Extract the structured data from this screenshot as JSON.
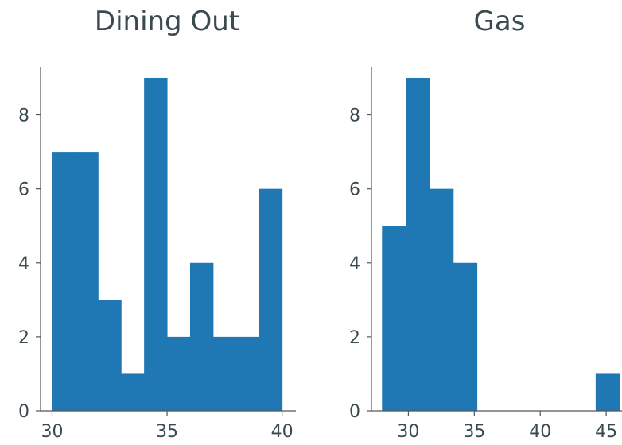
{
  "chart_data": [
    {
      "type": "histogram",
      "title": "Dining Out",
      "color": "#1f77b4",
      "bins": [
        {
          "x0": 30.0,
          "x1": 31.0,
          "count": 7
        },
        {
          "x0": 31.0,
          "x1": 32.0,
          "count": 7
        },
        {
          "x0": 32.0,
          "x1": 33.0,
          "count": 3
        },
        {
          "x0": 33.0,
          "x1": 34.0,
          "count": 1
        },
        {
          "x0": 34.0,
          "x1": 35.0,
          "count": 9
        },
        {
          "x0": 35.0,
          "x1": 36.0,
          "count": 2
        },
        {
          "x0": 36.0,
          "x1": 37.0,
          "count": 4
        },
        {
          "x0": 37.0,
          "x1": 38.0,
          "count": 2
        },
        {
          "x0": 38.0,
          "x1": 39.0,
          "count": 2
        },
        {
          "x0": 39.0,
          "x1": 40.0,
          "count": 6
        }
      ],
      "xlim": [
        29.5,
        40.6
      ],
      "ylim": [
        0,
        9.3
      ],
      "xticks": [
        30,
        35,
        40
      ],
      "yticks": [
        0,
        2,
        4,
        6,
        8
      ],
      "grid": false
    },
    {
      "type": "histogram",
      "title": "Gas",
      "color": "#1f77b4",
      "bins": [
        {
          "x0": 28.0,
          "x1": 29.8,
          "count": 5
        },
        {
          "x0": 29.8,
          "x1": 31.6,
          "count": 9
        },
        {
          "x0": 31.6,
          "x1": 33.4,
          "count": 6
        },
        {
          "x0": 33.4,
          "x1": 35.2,
          "count": 4
        },
        {
          "x0": 35.2,
          "x1": 37.0,
          "count": 0
        },
        {
          "x0": 37.0,
          "x1": 38.8,
          "count": 0
        },
        {
          "x0": 38.8,
          "x1": 40.6,
          "count": 0
        },
        {
          "x0": 40.6,
          "x1": 42.4,
          "count": 0
        },
        {
          "x0": 42.4,
          "x1": 44.2,
          "count": 0
        },
        {
          "x0": 44.2,
          "x1": 46.0,
          "count": 1
        }
      ],
      "xlim": [
        27.2,
        46.2
      ],
      "ylim": [
        0,
        9.3
      ],
      "xticks": [
        30,
        35,
        40,
        45
      ],
      "yticks": [
        0,
        2,
        4,
        6,
        8
      ],
      "grid": false
    }
  ]
}
